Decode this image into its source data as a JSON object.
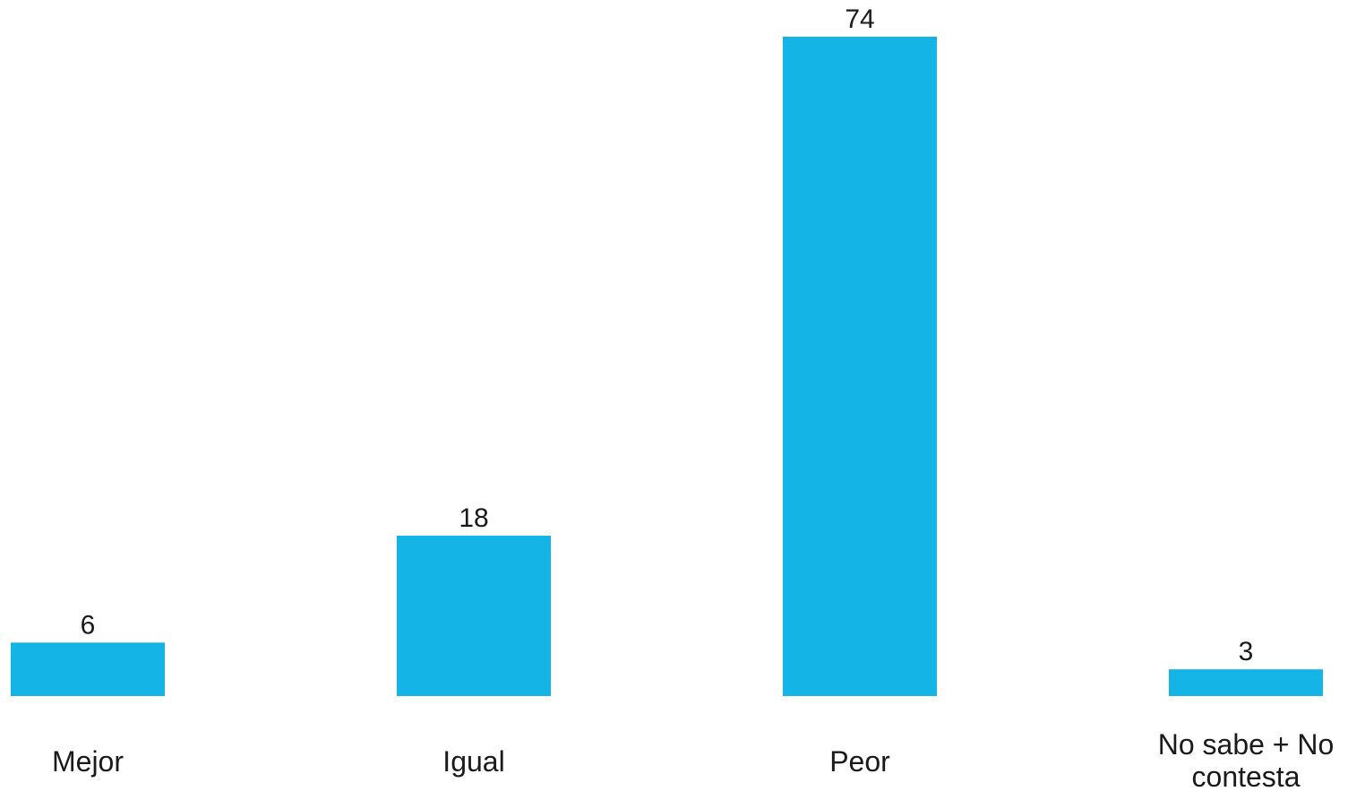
{
  "chart_data": {
    "type": "bar",
    "title": "",
    "xlabel": "",
    "ylabel": "",
    "categories": [
      "Mejor",
      "Igual",
      "Peor",
      "No sabe + No contesta"
    ],
    "category_label_lines": [
      [
        "Mejor"
      ],
      [
        "Igual"
      ],
      [
        "Peor"
      ],
      [
        "No sabe + No",
        "contesta"
      ]
    ],
    "values": [
      6,
      18,
      74,
      3
    ],
    "data_labels": [
      "6",
      "18",
      "74",
      "3"
    ],
    "ylim": [
      0,
      74
    ],
    "grid": false,
    "legend": "none",
    "bar_color": "#15B4E6"
  }
}
